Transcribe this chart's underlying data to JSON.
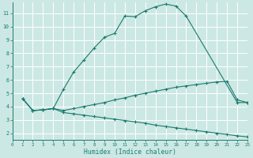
{
  "xlabel": "Humidex (Indice chaleur)",
  "background_color": "#cce8e4",
  "line_color": "#1a7a6e",
  "grid_color": "#ffffff",
  "xlim": [
    0,
    23
  ],
  "ylim": [
    1.5,
    11.8
  ],
  "xticks": [
    0,
    1,
    2,
    3,
    4,
    5,
    6,
    7,
    8,
    9,
    10,
    11,
    12,
    13,
    14,
    15,
    16,
    17,
    18,
    19,
    20,
    21,
    22,
    23
  ],
  "yticks": [
    2,
    3,
    4,
    5,
    6,
    7,
    8,
    9,
    10,
    11
  ],
  "line1_x": [
    1,
    2,
    3,
    4,
    5,
    6,
    7,
    8,
    9,
    10,
    11,
    12,
    13,
    14,
    15,
    16,
    17,
    22,
    23
  ],
  "line1_y": [
    4.6,
    3.7,
    3.75,
    3.85,
    5.3,
    6.6,
    7.5,
    8.4,
    9.2,
    9.5,
    10.8,
    10.75,
    11.2,
    11.5,
    11.7,
    11.55,
    10.8,
    4.3,
    4.3
  ],
  "line2_x": [
    1,
    2,
    3,
    4,
    5,
    6,
    7,
    8,
    9,
    10,
    11,
    12,
    13,
    14,
    15,
    16,
    17,
    18,
    19,
    20,
    21,
    22,
    23
  ],
  "line2_y": [
    4.6,
    3.7,
    3.75,
    3.85,
    3.7,
    3.85,
    4.0,
    4.15,
    4.3,
    4.5,
    4.65,
    4.85,
    5.0,
    5.15,
    5.3,
    5.45,
    5.55,
    5.65,
    5.75,
    5.85,
    5.9,
    4.5,
    4.3
  ],
  "line3_x": [
    1,
    2,
    3,
    4,
    5,
    6,
    7,
    8,
    9,
    10,
    11,
    12,
    13,
    14,
    15,
    16,
    17,
    18,
    19,
    20,
    21,
    22,
    23
  ],
  "line3_y": [
    4.6,
    3.7,
    3.75,
    3.85,
    3.55,
    3.45,
    3.35,
    3.25,
    3.15,
    3.05,
    2.95,
    2.85,
    2.75,
    2.6,
    2.5,
    2.4,
    2.3,
    2.2,
    2.1,
    2.0,
    1.9,
    1.8,
    1.72
  ]
}
